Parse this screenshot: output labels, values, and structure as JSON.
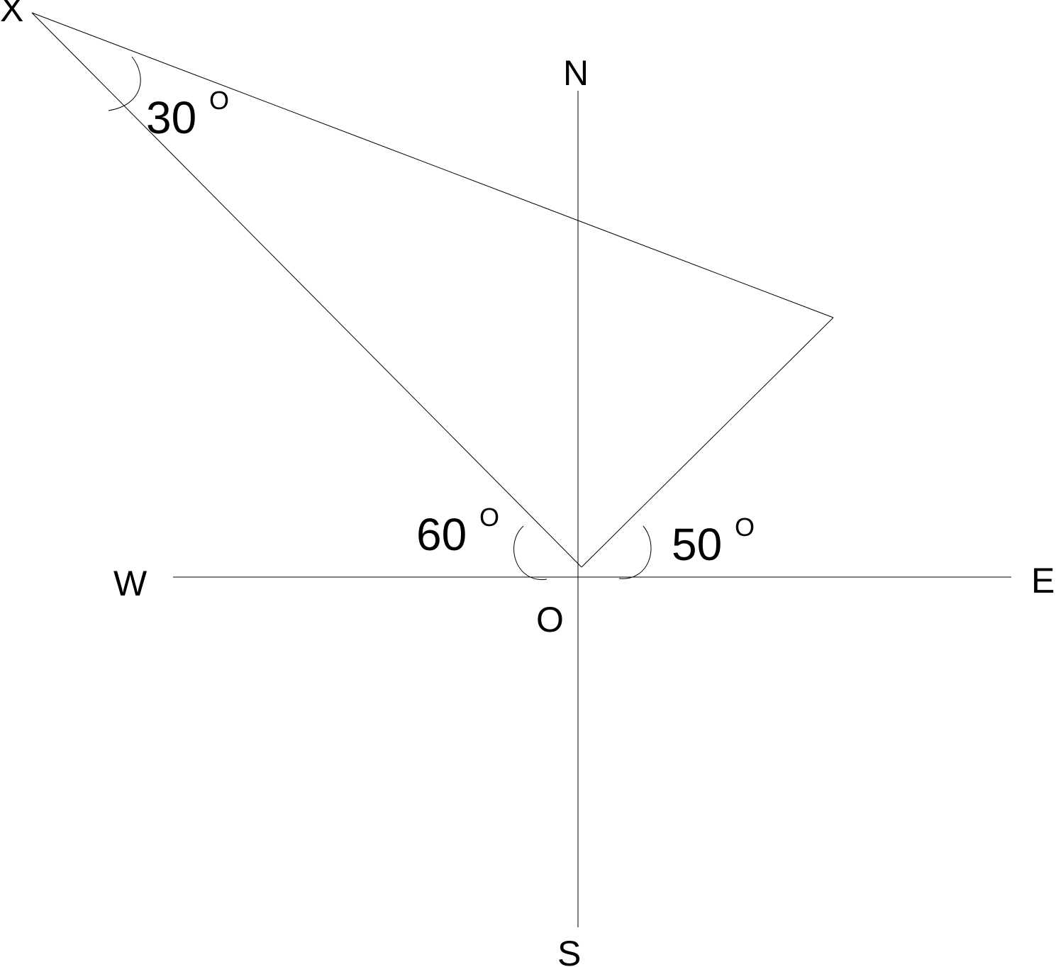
{
  "compass": {
    "north": "N",
    "south": "S",
    "east": "E",
    "west": "W"
  },
  "points": {
    "origin": "O",
    "x_point": "X"
  },
  "angles": {
    "at_x": {
      "value": "30",
      "degree_mark": "O"
    },
    "west_of_north": {
      "value": "60",
      "degree_mark": "O"
    },
    "east_of_north": {
      "value": "50",
      "degree_mark": "O"
    }
  }
}
